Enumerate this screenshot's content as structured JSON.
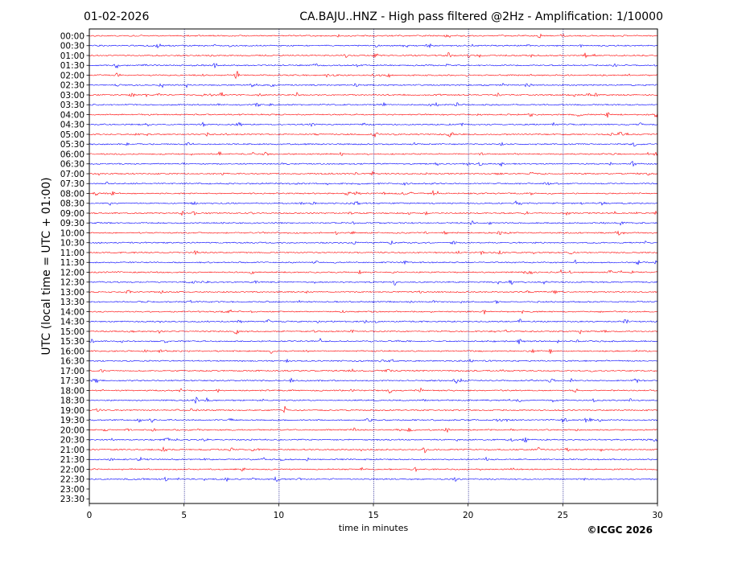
{
  "header": {
    "date": "01-02-2026",
    "title": "CA.BAJU..HNZ - High pass filtered @2Hz - Amplification: 1/10000"
  },
  "footer": {
    "copyright": "©ICGC 2026"
  },
  "colors": {
    "odd_trace": "#ff0000",
    "even_trace": "#0000ff",
    "grid": "#000080",
    "axis": "#000000"
  },
  "chart_data": {
    "type": "line",
    "subtype": "helicorder",
    "xlabel": "time in minutes",
    "ylabel": "UTC (local time = UTC + 01:00)",
    "xlim": [
      0,
      30
    ],
    "x_ticks": [
      0,
      5,
      10,
      15,
      20,
      25,
      30
    ],
    "y_tick_labels": [
      "00:00",
      "00:30",
      "01:00",
      "01:30",
      "02:00",
      "02:30",
      "03:00",
      "03:30",
      "04:00",
      "04:30",
      "05:00",
      "05:30",
      "06:00",
      "06:30",
      "07:00",
      "07:30",
      "08:00",
      "08:30",
      "09:00",
      "09:30",
      "10:00",
      "10:30",
      "11:00",
      "11:30",
      "12:00",
      "12:30",
      "13:00",
      "13:30",
      "14:00",
      "14:30",
      "15:00",
      "15:30",
      "16:00",
      "16:30",
      "17:00",
      "17:30",
      "18:00",
      "18:30",
      "19:00",
      "19:30",
      "20:00",
      "20:30",
      "21:00",
      "21:30",
      "22:00",
      "22:30",
      "23:00",
      "23:30"
    ],
    "grid": "vertical dotted lines at every 5 minutes",
    "trace_color_pattern": [
      "red",
      "blue"
    ],
    "traces_with_data": 46,
    "empty_rows": [
      "23:00",
      "23:30"
    ]
  }
}
